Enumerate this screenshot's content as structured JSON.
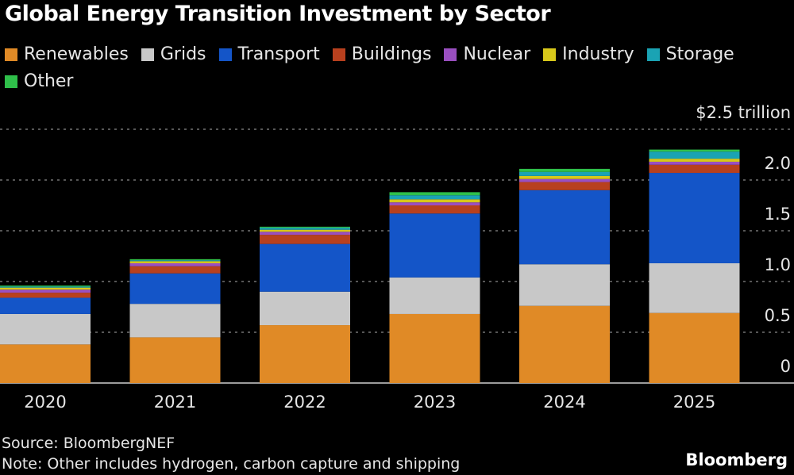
{
  "title": "Global Energy Transition Investment by Sector",
  "source": "Source: BloombergNEF",
  "note": "Note: Other includes hydrogen, carbon capture and shipping",
  "brand": "Bloomberg",
  "chart_data": {
    "type": "bar",
    "stacked": true,
    "title": "Global Energy Transition Investment by Sector",
    "xlabel": "",
    "ylabel": "",
    "y_unit_label": "$2.5 trillion",
    "ylim": [
      0,
      2.5
    ],
    "grid": true,
    "y_axis_side": "right",
    "legend_position": "top",
    "categories": [
      "2020",
      "2021",
      "2022",
      "2023",
      "2024",
      "2025"
    ],
    "y_ticks": [
      {
        "value": 0,
        "label": "0"
      },
      {
        "value": 0.5,
        "label": "0.5"
      },
      {
        "value": 1.0,
        "label": "1.0"
      },
      {
        "value": 1.5,
        "label": "1.5"
      },
      {
        "value": 2.0,
        "label": "2.0"
      },
      {
        "value": 2.5,
        "label": "$2.5 trillion"
      }
    ],
    "series": [
      {
        "name": "Renewables",
        "color": "#e08a26",
        "values": [
          0.38,
          0.45,
          0.57,
          0.68,
          0.76,
          0.69
        ]
      },
      {
        "name": "Grids",
        "color": "#c8c8c8",
        "values": [
          0.3,
          0.33,
          0.33,
          0.36,
          0.41,
          0.49
        ]
      },
      {
        "name": "Transport",
        "color": "#1455c8",
        "values": [
          0.16,
          0.3,
          0.47,
          0.63,
          0.73,
          0.89
        ]
      },
      {
        "name": "Buildings",
        "color": "#b8401e",
        "values": [
          0.05,
          0.07,
          0.09,
          0.08,
          0.08,
          0.08
        ]
      },
      {
        "name": "Nuclear",
        "color": "#9a4fc0",
        "values": [
          0.03,
          0.03,
          0.03,
          0.03,
          0.03,
          0.03
        ]
      },
      {
        "name": "Industry",
        "color": "#d8c81a",
        "values": [
          0.02,
          0.02,
          0.02,
          0.03,
          0.03,
          0.03
        ]
      },
      {
        "name": "Storage",
        "color": "#1aa3b4",
        "values": [
          0.01,
          0.01,
          0.02,
          0.04,
          0.04,
          0.07
        ]
      },
      {
        "name": "Other",
        "color": "#2fbf4a",
        "values": [
          0.01,
          0.01,
          0.01,
          0.03,
          0.03,
          0.02
        ]
      }
    ]
  }
}
